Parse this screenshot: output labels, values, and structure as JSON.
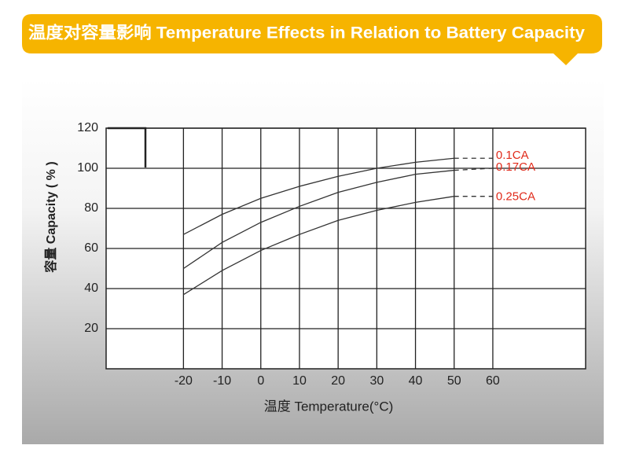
{
  "chart_data": {
    "type": "line",
    "title": "温度对容量影响 Temperature Effects in Relation to Battery Capacity",
    "x_label": "温度  Temperature(°C)",
    "y_label": "容量 Capacity ( % )",
    "x": [
      -20,
      -10,
      0,
      10,
      20,
      30,
      40,
      50,
      60
    ],
    "xlim": [
      -40,
      84
    ],
    "xticks": [
      -20,
      -10,
      0,
      10,
      20,
      30,
      40,
      50,
      60
    ],
    "ylim": [
      0,
      120
    ],
    "yticks": [
      20,
      40,
      60,
      80,
      100,
      120
    ],
    "grid": true,
    "series": [
      {
        "name": "0.1CA",
        "color": "#333333",
        "label_color": "#e02a1a",
        "values": [
          67,
          77,
          85,
          91,
          96,
          100,
          103,
          105,
          null
        ],
        "extension_values": [
          null,
          null,
          null,
          null,
          null,
          null,
          null,
          105,
          105
        ]
      },
      {
        "name": "0.17CA",
        "color": "#333333",
        "label_color": "#e02a1a",
        "values": [
          50,
          63,
          73,
          81,
          88,
          93,
          97,
          99,
          null
        ],
        "extension_values": [
          null,
          null,
          null,
          null,
          null,
          null,
          null,
          99,
          100
        ]
      },
      {
        "name": "0.25CA",
        "color": "#333333",
        "label_color": "#e02a1a",
        "values": [
          37,
          49,
          59,
          67,
          74,
          79,
          83,
          86,
          null
        ],
        "extension_values": [
          null,
          null,
          null,
          null,
          null,
          null,
          null,
          86,
          86
        ]
      }
    ]
  }
}
